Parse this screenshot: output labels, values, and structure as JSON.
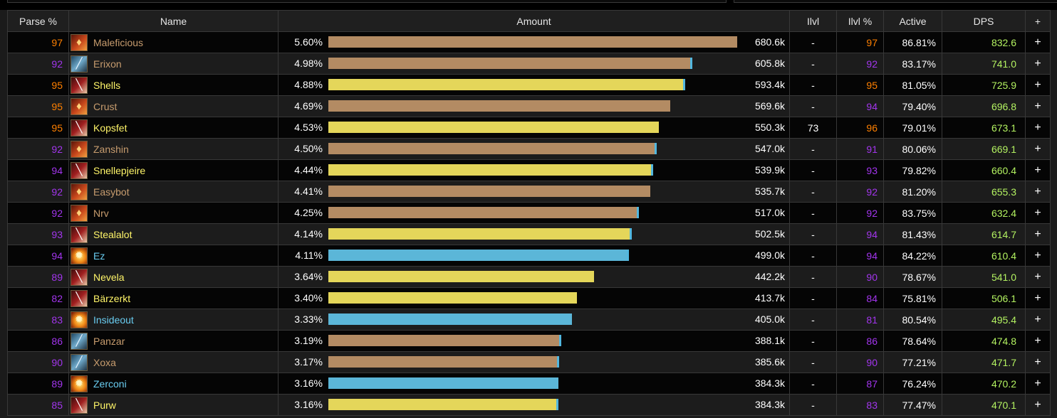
{
  "header": {
    "parse": "Parse %",
    "name": "Name",
    "amount": "Amount",
    "ilvl": "Ilvl",
    "ilvl_pct": "Ilvl %",
    "active": "Active",
    "dps": "DPS",
    "add": "+"
  },
  "colors": {
    "legendary_parse": "#ff8000",
    "epic_parse": "#a335ee",
    "warrior": "#c79c6e",
    "rogue": "#fff569",
    "mage": "#69ccf0",
    "dps": "#b3f261",
    "bar_brown": "#b38b63",
    "bar_yellow": "#e4d65a",
    "bar_blue": "#5bb6d8",
    "bar_cap": "#52b7df"
  },
  "rows": [
    {
      "parse": "97",
      "name": "Maleficious",
      "cls": "warrior",
      "icon": "shield-icon",
      "pct": "5.60%",
      "frac": 1.0,
      "cap": false,
      "amount": "680.6k",
      "ilvl": "-",
      "ilvl_pct": "97",
      "active": "86.81%",
      "dps": "832.6",
      "add": "+"
    },
    {
      "parse": "92",
      "name": "Erixon",
      "cls": "warrior",
      "icon": "sword-icon",
      "pct": "4.98%",
      "frac": 0.885,
      "cap": true,
      "amount": "605.8k",
      "ilvl": "-",
      "ilvl_pct": "92",
      "active": "83.17%",
      "dps": "741.0",
      "add": "+"
    },
    {
      "parse": "95",
      "name": "Shells",
      "cls": "rogue",
      "icon": "blade-icon",
      "pct": "4.88%",
      "frac": 0.867,
      "cap": true,
      "amount": "593.4k",
      "ilvl": "-",
      "ilvl_pct": "95",
      "active": "81.05%",
      "dps": "725.9",
      "add": "+"
    },
    {
      "parse": "95",
      "name": "Crust",
      "cls": "warrior",
      "icon": "shield-icon",
      "pct": "4.69%",
      "frac": 0.837,
      "cap": false,
      "amount": "569.6k",
      "ilvl": "-",
      "ilvl_pct": "94",
      "active": "79.40%",
      "dps": "696.8",
      "add": "+"
    },
    {
      "parse": "95",
      "name": "Kopsfet",
      "cls": "rogue",
      "icon": "blade-icon",
      "pct": "4.53%",
      "frac": 0.808,
      "cap": false,
      "amount": "550.3k",
      "ilvl": "73",
      "ilvl_pct": "96",
      "active": "79.01%",
      "dps": "673.1",
      "add": "+"
    },
    {
      "parse": "92",
      "name": "Zanshin",
      "cls": "warrior",
      "icon": "shield-icon",
      "pct": "4.50%",
      "frac": 0.798,
      "cap": true,
      "amount": "547.0k",
      "ilvl": "-",
      "ilvl_pct": "91",
      "active": "80.06%",
      "dps": "669.1",
      "add": "+"
    },
    {
      "parse": "94",
      "name": "Snellepjeire",
      "cls": "rogue",
      "icon": "blade-icon",
      "pct": "4.44%",
      "frac": 0.789,
      "cap": true,
      "amount": "539.9k",
      "ilvl": "-",
      "ilvl_pct": "93",
      "active": "79.82%",
      "dps": "660.4",
      "add": "+"
    },
    {
      "parse": "92",
      "name": "Easybot",
      "cls": "warrior",
      "icon": "shield-icon",
      "pct": "4.41%",
      "frac": 0.787,
      "cap": false,
      "amount": "535.7k",
      "ilvl": "-",
      "ilvl_pct": "92",
      "active": "81.20%",
      "dps": "655.3",
      "add": "+"
    },
    {
      "parse": "92",
      "name": "Nrv",
      "cls": "warrior",
      "icon": "shield-icon",
      "pct": "4.25%",
      "frac": 0.754,
      "cap": true,
      "amount": "517.0k",
      "ilvl": "-",
      "ilvl_pct": "92",
      "active": "83.75%",
      "dps": "632.4",
      "add": "+"
    },
    {
      "parse": "93",
      "name": "Stealalot",
      "cls": "rogue",
      "icon": "blade-icon",
      "pct": "4.14%",
      "frac": 0.737,
      "cap": true,
      "amount": "502.5k",
      "ilvl": "-",
      "ilvl_pct": "94",
      "active": "81.43%",
      "dps": "614.7",
      "add": "+"
    },
    {
      "parse": "94",
      "name": "Ez",
      "cls": "mage",
      "icon": "fire-icon",
      "pct": "4.11%",
      "frac": 0.73,
      "cap": true,
      "amount": "499.0k",
      "ilvl": "-",
      "ilvl_pct": "94",
      "active": "84.22%",
      "dps": "610.4",
      "add": "+"
    },
    {
      "parse": "89",
      "name": "Nevela",
      "cls": "rogue",
      "icon": "blade-icon",
      "pct": "3.64%",
      "frac": 0.65,
      "cap": false,
      "amount": "442.2k",
      "ilvl": "-",
      "ilvl_pct": "90",
      "active": "78.67%",
      "dps": "541.0",
      "add": "+"
    },
    {
      "parse": "82",
      "name": "Bärzerkt",
      "cls": "rogue",
      "icon": "blade-icon",
      "pct": "3.40%",
      "frac": 0.608,
      "cap": false,
      "amount": "413.7k",
      "ilvl": "-",
      "ilvl_pct": "84",
      "active": "75.81%",
      "dps": "506.1",
      "add": "+"
    },
    {
      "parse": "83",
      "name": "Insideout",
      "cls": "mage",
      "icon": "fire-icon",
      "pct": "3.33%",
      "frac": 0.595,
      "cap": false,
      "amount": "405.0k",
      "ilvl": "-",
      "ilvl_pct": "81",
      "active": "80.54%",
      "dps": "495.4",
      "add": "+"
    },
    {
      "parse": "86",
      "name": "Panzar",
      "cls": "warrior",
      "icon": "sword-icon",
      "pct": "3.19%",
      "frac": 0.564,
      "cap": true,
      "amount": "388.1k",
      "ilvl": "-",
      "ilvl_pct": "86",
      "active": "78.64%",
      "dps": "474.8",
      "add": "+"
    },
    {
      "parse": "90",
      "name": "Xoxa",
      "cls": "warrior",
      "icon": "sword-icon",
      "pct": "3.17%",
      "frac": 0.56,
      "cap": true,
      "amount": "385.6k",
      "ilvl": "-",
      "ilvl_pct": "90",
      "active": "77.21%",
      "dps": "471.7",
      "add": "+"
    },
    {
      "parse": "89",
      "name": "Zerconi",
      "cls": "mage",
      "icon": "fire-icon",
      "pct": "3.16%",
      "frac": 0.562,
      "cap": false,
      "amount": "384.3k",
      "ilvl": "-",
      "ilvl_pct": "87",
      "active": "76.24%",
      "dps": "470.2",
      "add": "+"
    },
    {
      "parse": "85",
      "name": "Purw",
      "cls": "rogue",
      "icon": "blade-icon",
      "pct": "3.16%",
      "frac": 0.557,
      "cap": true,
      "amount": "384.3k",
      "ilvl": "-",
      "ilvl_pct": "83",
      "active": "77.47%",
      "dps": "470.1",
      "add": "+"
    }
  ]
}
